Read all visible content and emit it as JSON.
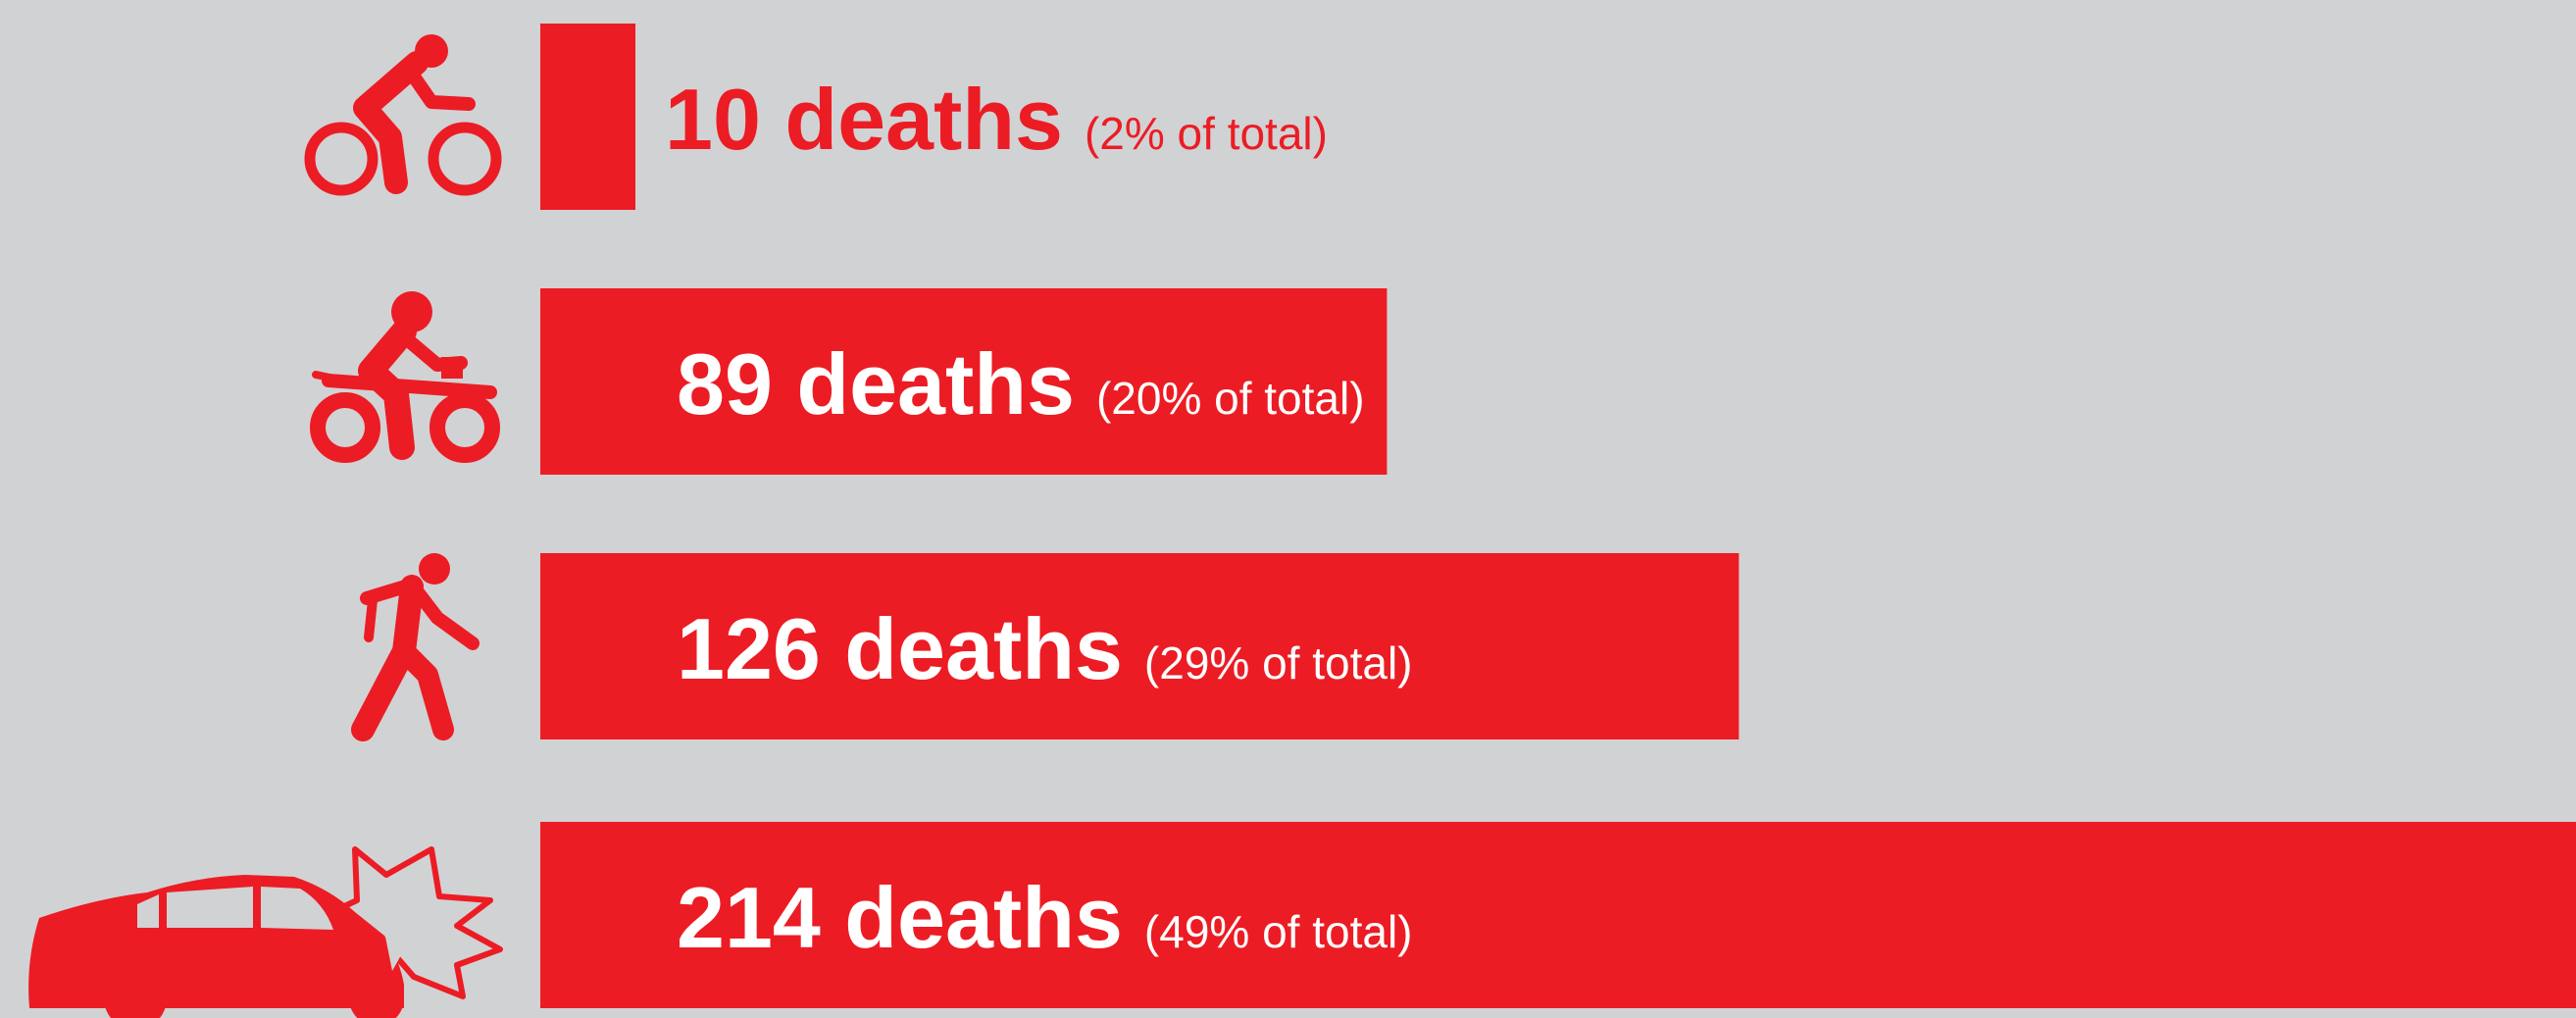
{
  "colors": {
    "background": "#d1d2d4",
    "bar": "#ec1c24",
    "label_on_bar": "#ffffff",
    "label_off_bar": "#ec1c24"
  },
  "chart_data": {
    "type": "bar",
    "orientation": "horizontal",
    "grid": false,
    "legend": "none",
    "xlim": [
      0,
      214
    ],
    "categories": [
      "bicyclist-icon",
      "motorcyclist-icon",
      "pedestrian-icon",
      "car-crash-icon"
    ],
    "values": [
      10,
      89,
      126,
      214
    ],
    "labels": [
      "10 deaths",
      "89 deaths",
      "126 deaths",
      "214 deaths"
    ],
    "shares": [
      "(2% of total)",
      "(20% of total)",
      "(29% of total)",
      "(49% of total)"
    ]
  }
}
